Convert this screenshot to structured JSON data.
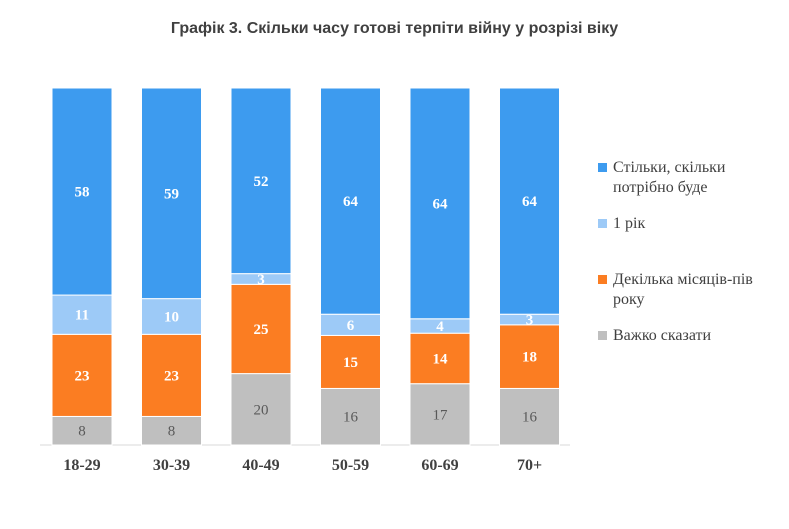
{
  "title": "Графік 3. Скільки часу готові терпіти війну у розрізі віку",
  "chart_data": {
    "type": "bar",
    "stacked": true,
    "normalized": true,
    "categories": [
      "18-29",
      "30-39",
      "40-49",
      "50-59",
      "60-69",
      "70+"
    ],
    "series": [
      {
        "name": "Важко сказати",
        "color": "#bfbfbf",
        "values": [
          8,
          8,
          20,
          16,
          17,
          16
        ]
      },
      {
        "name": "Декілька місяців-пів року",
        "color": "#fb7d22",
        "values": [
          23,
          23,
          25,
          15,
          14,
          18
        ]
      },
      {
        "name": "1 рік",
        "color": "#9dcaf7",
        "values": [
          11,
          10,
          3,
          6,
          4,
          3
        ]
      },
      {
        "name": "Стільки, скільки потрібно буде",
        "color": "#3d9bef",
        "values": [
          58,
          59,
          52,
          64,
          64,
          64
        ]
      }
    ],
    "legend_position": "right",
    "legend_order": [
      "Стільки, скільки потрібно буде",
      "1 рік",
      "Декілька місяців-пів року",
      "Важко сказати"
    ]
  }
}
